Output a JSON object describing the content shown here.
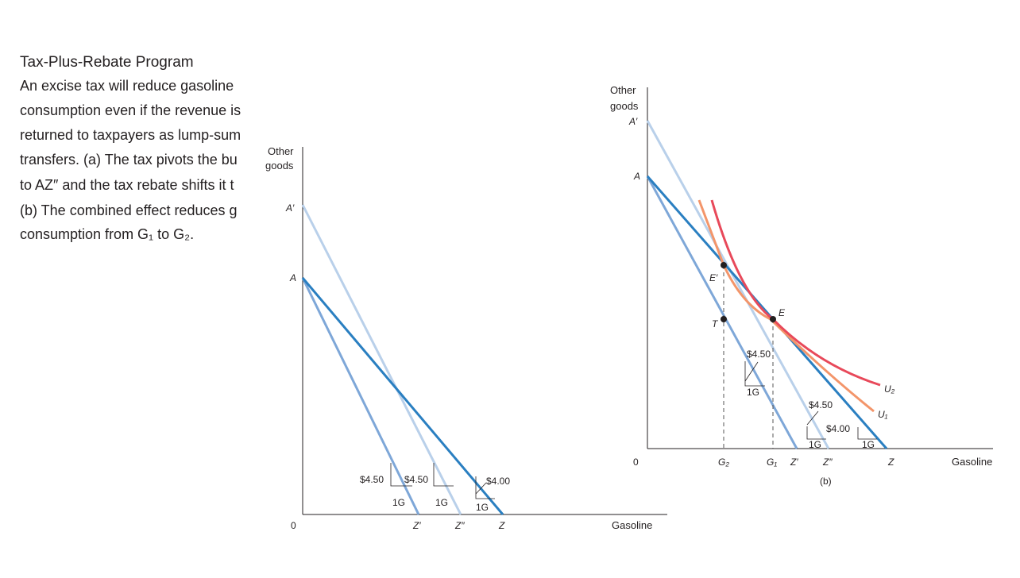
{
  "caption": {
    "title": "Tax-Plus-Rebate Program",
    "lines": [
      "An excise tax will reduce gasoline",
      "consumption even if the revenue is",
      "returned to taxpayers as lump-sum",
      "transfers. (a) The tax pivots the bu",
      "to AZ″ and the tax rebate shifts it t",
      "(b) The combined effect reduces g",
      "consumption from G₁ to G₂."
    ]
  },
  "panel_a": {
    "y_axis_label": [
      "Other",
      "goods"
    ],
    "x_axis_label": "Gasoline",
    "origin": "0",
    "points": {
      "a_prime": "A′",
      "a": "A",
      "z_prime": "Z′",
      "z_double_prime": "Z″",
      "z": "Z"
    },
    "slopes": [
      {
        "price": "$4.50",
        "unit": "1G"
      },
      {
        "price": "$4.50",
        "unit": "1G"
      },
      {
        "price": "$4.00",
        "unit": "1G"
      }
    ]
  },
  "panel_b": {
    "y_axis_label": [
      "Other",
      "goods"
    ],
    "x_axis_label": "Gasoline",
    "origin": "0",
    "caption": "(b)",
    "points": {
      "a_prime": "A′",
      "a": "A",
      "e_prime": "E′",
      "t": "T",
      "e": "E",
      "g2": "G₂",
      "g1": "G₁",
      "z_prime": "Z′",
      "z_double_prime": "Z″",
      "z": "Z"
    },
    "curves": {
      "u2": "U₂",
      "u1": "U₁"
    },
    "slopes": [
      {
        "price": "$4.50",
        "unit": "1G"
      },
      {
        "price": "$4.50",
        "unit": "1G"
      },
      {
        "price": "$4.00",
        "unit": "1G"
      }
    ]
  }
}
